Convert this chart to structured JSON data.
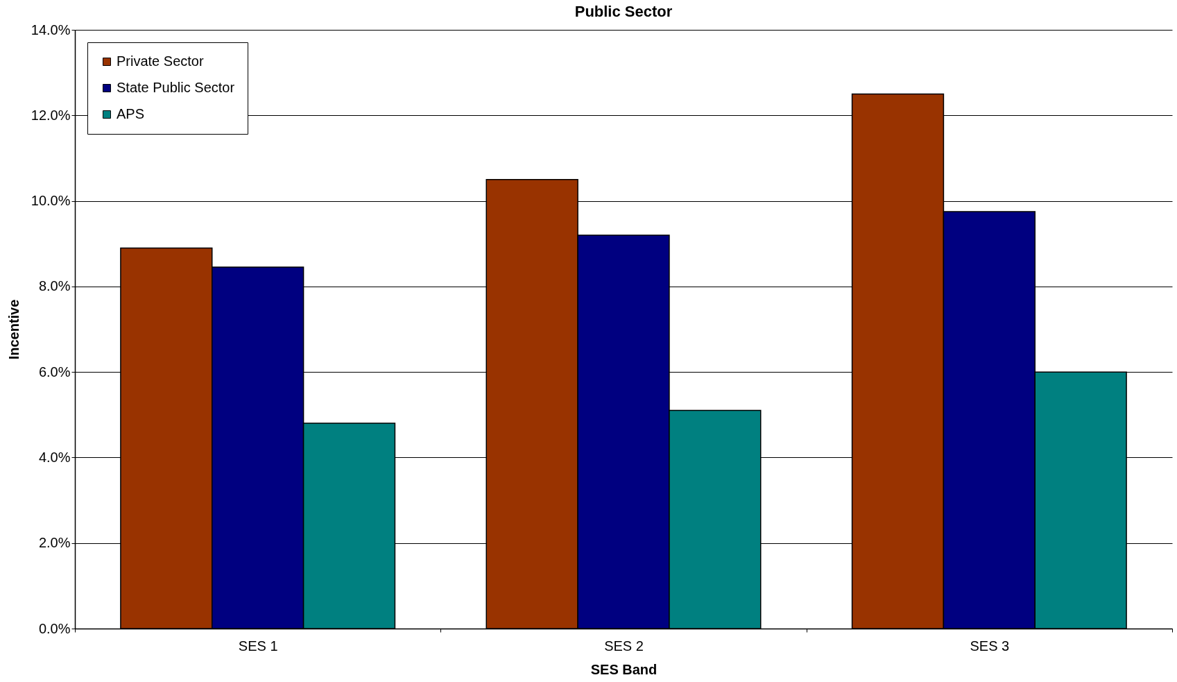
{
  "chart_data": {
    "type": "bar",
    "title": "Public Sector",
    "xlabel": "SES Band",
    "ylabel": "Incentive",
    "categories": [
      "SES 1",
      "SES 2",
      "SES 3"
    ],
    "series": [
      {
        "name": "Private Sector",
        "color": "#993300",
        "values": [
          8.9,
          10.5,
          12.5
        ]
      },
      {
        "name": "State Public Sector",
        "color": "#000080",
        "values": [
          8.45,
          9.2,
          9.75
        ]
      },
      {
        "name": "APS",
        "color": "#008080",
        "values": [
          4.8,
          5.1,
          6.0
        ]
      }
    ],
    "ylim": [
      0,
      14
    ],
    "yticks": [
      {
        "value": 0,
        "label": "0.0%"
      },
      {
        "value": 2,
        "label": "2.0%"
      },
      {
        "value": 4,
        "label": "4.0%"
      },
      {
        "value": 6,
        "label": "6.0%"
      },
      {
        "value": 8,
        "label": "8.0%"
      },
      {
        "value": 10,
        "label": "10.0%"
      },
      {
        "value": 12,
        "label": "12.0%"
      },
      {
        "value": 14,
        "label": "14.0%"
      }
    ],
    "grid": "y",
    "legend": "top left"
  }
}
